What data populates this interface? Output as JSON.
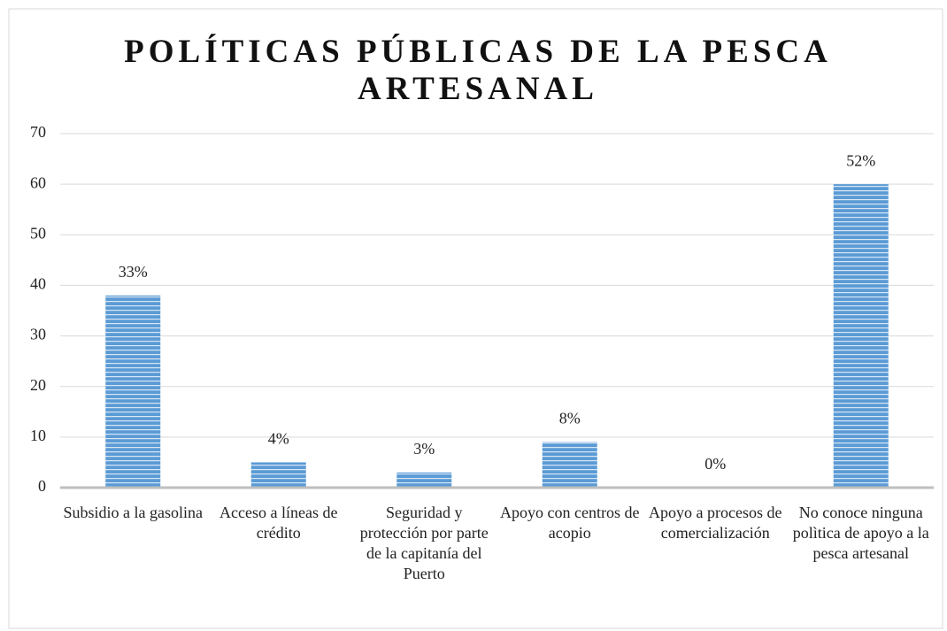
{
  "chart_data": {
    "type": "bar",
    "title": "POLÍTICAS PÚBLICAS DE LA PESCA ARTESANAL",
    "categories": [
      "Subsidio a la gasolina",
      "Acceso a líneas de crédito",
      "Seguridad y protección por parte de la capitanía del Puerto",
      "Apoyo con centros de acopio",
      "Apoyo a procesos de comercialización",
      "No conoce ninguna polìtica de apoyo a la pesca artesanal"
    ],
    "values": [
      38,
      5,
      3,
      9,
      0,
      60
    ],
    "value_labels": [
      "33%",
      "4%",
      "3%",
      "8%",
      "0%",
      "52%"
    ],
    "color": "#5b9bd5",
    "ylim": [
      0,
      70
    ],
    "yticks": [
      0,
      10,
      20,
      30,
      40,
      50,
      60,
      70
    ],
    "grid": true
  }
}
